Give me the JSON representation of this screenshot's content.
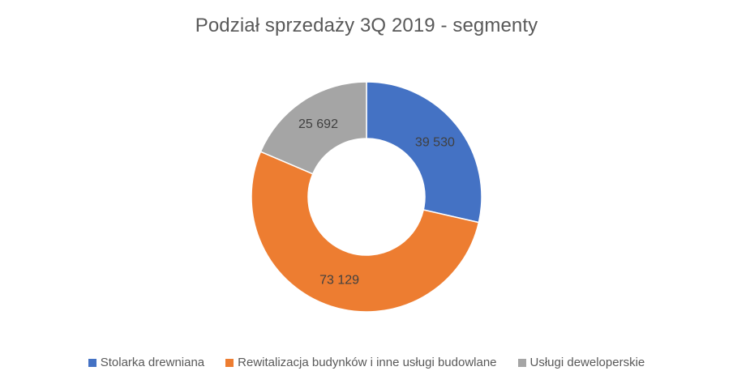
{
  "chart_data": {
    "type": "pie",
    "variant": "donut",
    "title": "Podział sprzedaży 3Q 2019 - segmenty",
    "legend_position": "bottom",
    "series": [
      {
        "name": "Stolarka drewniana",
        "value": 39530,
        "label": "39 530",
        "color": "#4472C4"
      },
      {
        "name": "Rewitalizacja budynków i inne usługi budowlane",
        "value": 73129,
        "label": "73 129",
        "color": "#ED7D31"
      },
      {
        "name": "Usługi deweloperskie",
        "value": 25692,
        "label": "25 692",
        "color": "#A5A5A5"
      }
    ]
  }
}
